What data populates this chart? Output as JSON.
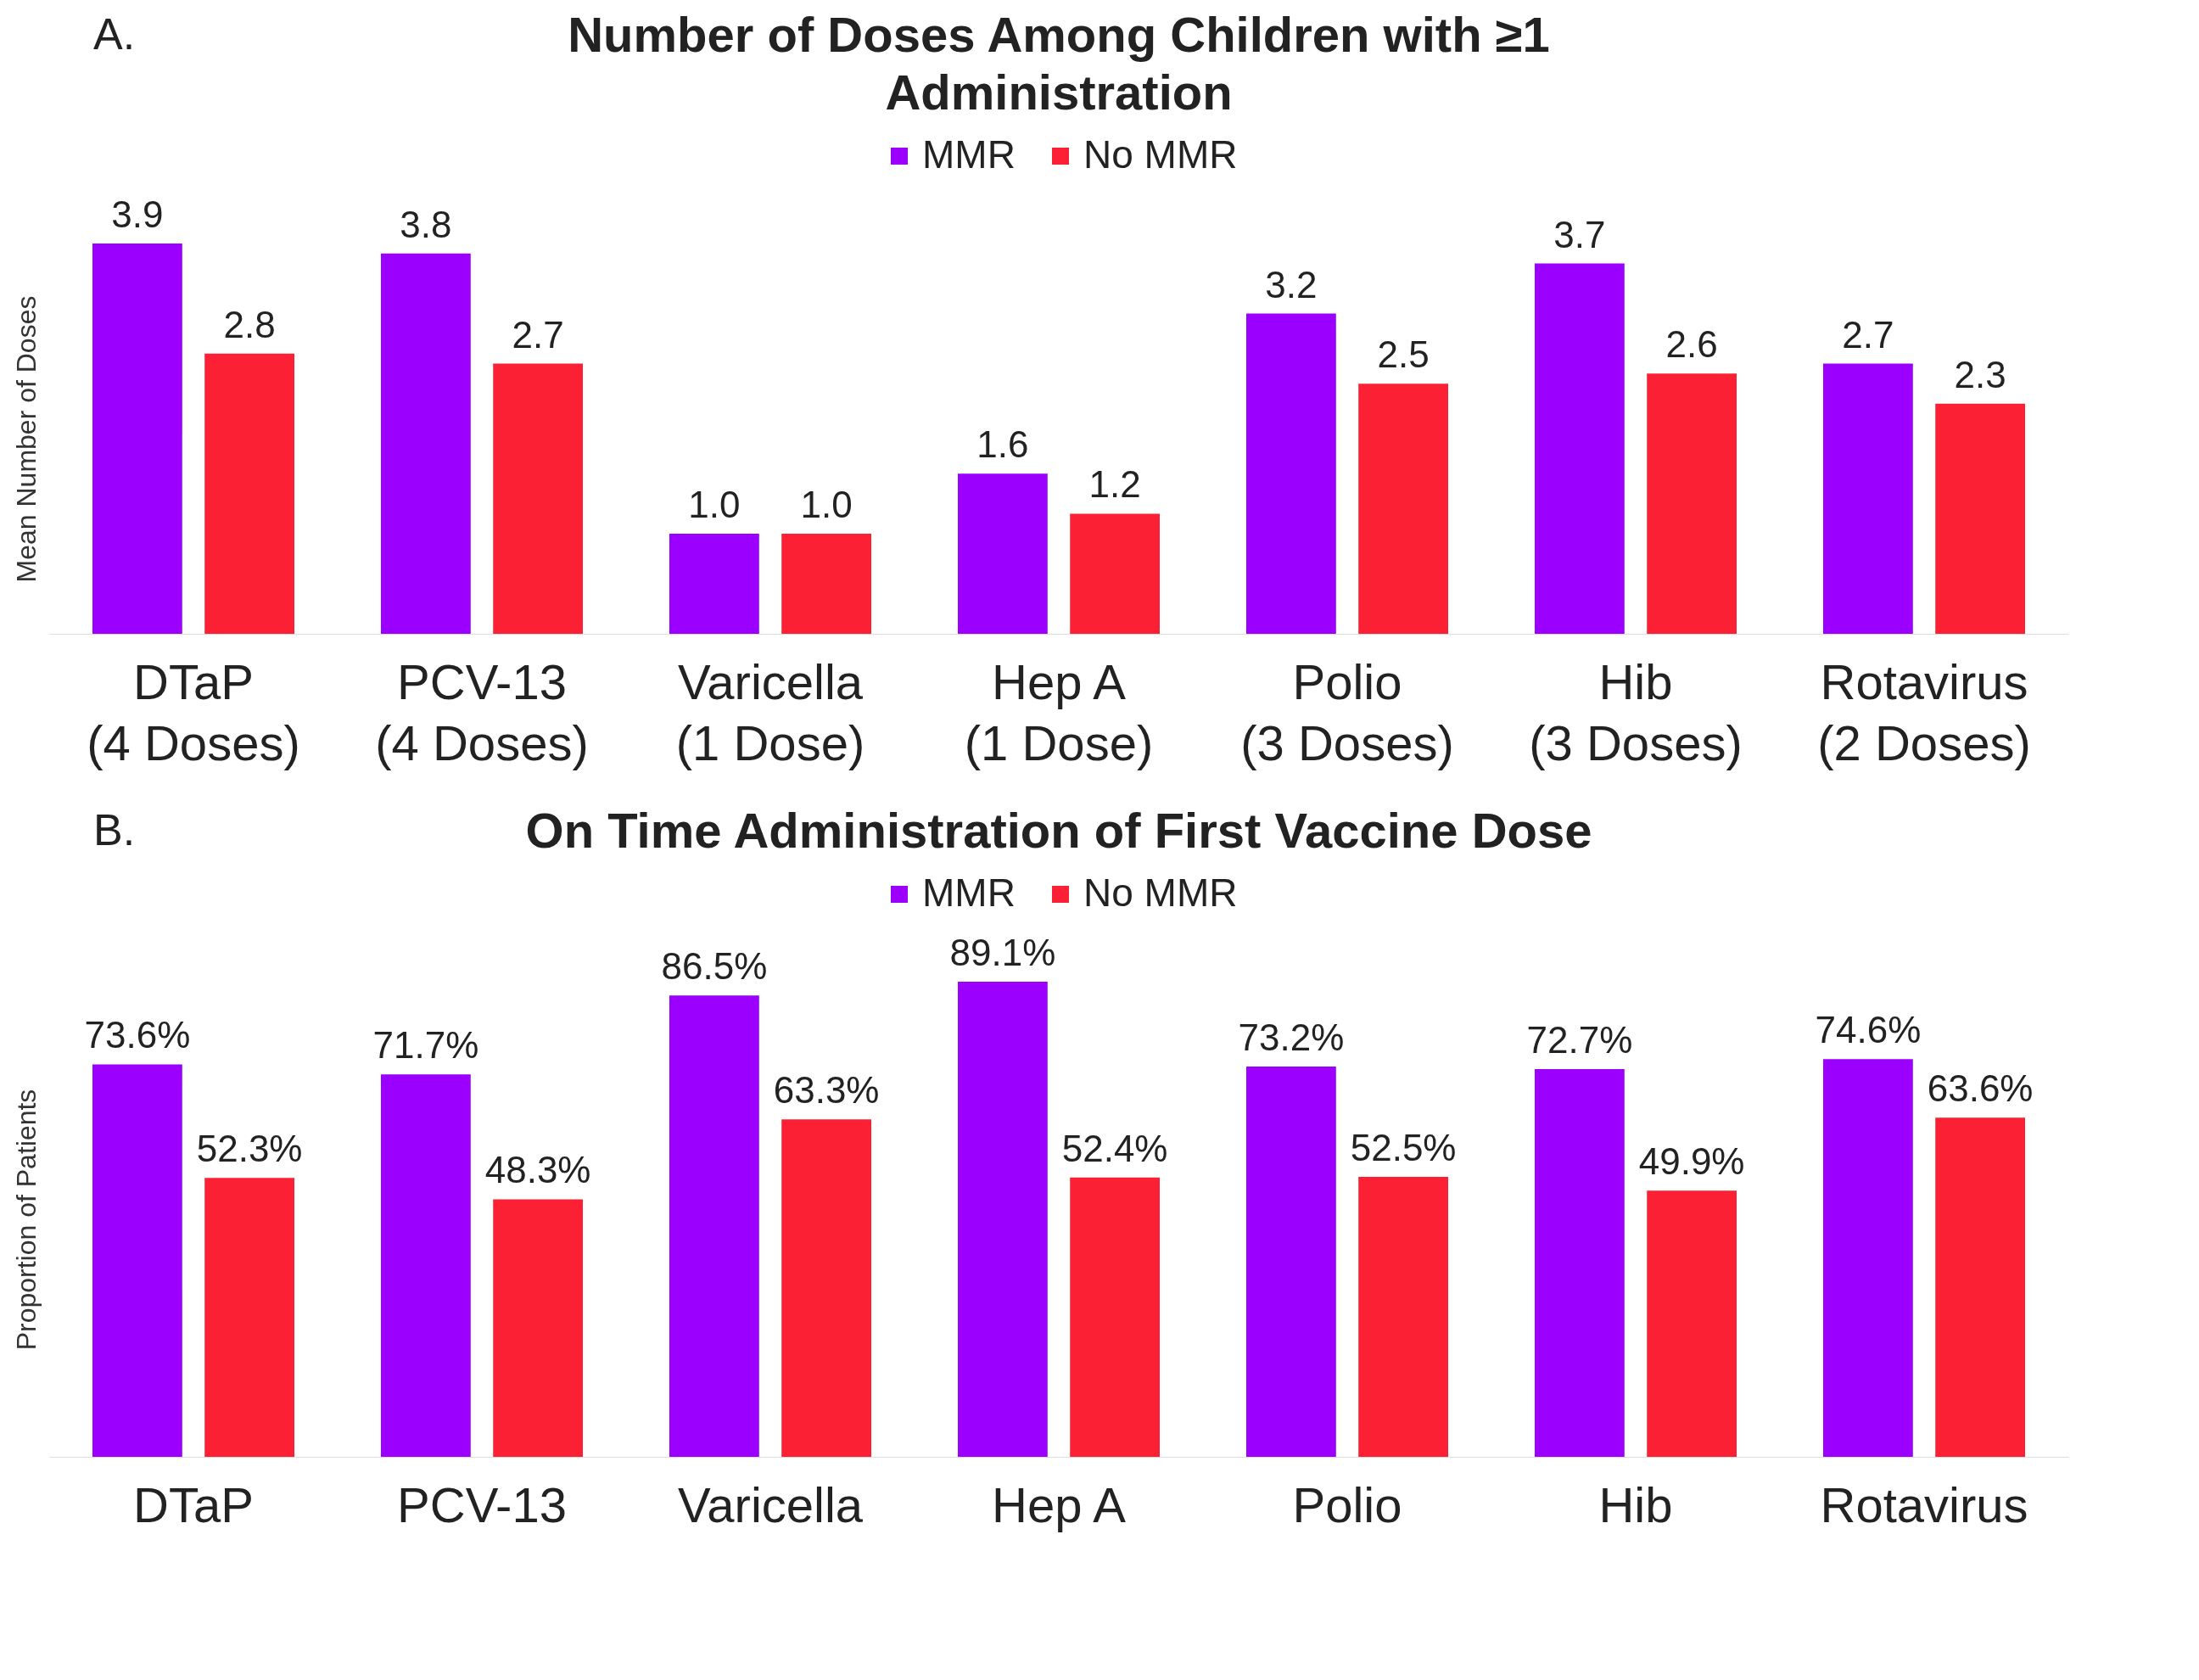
{
  "chart_data": [
    {
      "type": "bar",
      "title": "Number of Doses Among Children with ≥1 Administration",
      "ylabel": "Mean Number of Doses",
      "annotations": [
        "A."
      ],
      "categories": [
        "DTaP\n(4 Doses)",
        "PCV-13\n(4 Doses)",
        "Varicella\n(1 Dose)",
        "Hep A\n(1 Dose)",
        "Polio\n(3 Doses)",
        "Hib\n(3 Doses)",
        "Rotavirus\n(2 Doses)"
      ],
      "series": [
        {
          "name": "MMR",
          "color": "#9b00ff",
          "values": [
            3.9,
            3.8,
            1.0,
            1.6,
            3.2,
            3.7,
            2.7
          ],
          "value_labels": [
            "3.9",
            "3.8",
            "1.0",
            "1.6",
            "3.2",
            "3.7",
            "2.7"
          ]
        },
        {
          "name": "No MMR",
          "color": "#fb2033",
          "values": [
            2.8,
            2.7,
            1.0,
            1.2,
            2.5,
            2.6,
            2.3
          ],
          "value_labels": [
            "2.8",
            "2.7",
            "1.0",
            "1.2",
            "2.5",
            "2.6",
            "2.3"
          ]
        }
      ],
      "tick_labels": "x",
      "legend": "top"
    },
    {
      "type": "bar",
      "title": "On Time Administration of First Vaccine Dose",
      "ylabel": "Proportion of Patients",
      "annotations": [
        "B."
      ],
      "categories": [
        "DTaP",
        "PCV-13",
        "Varicella",
        "Hep A",
        "Polio",
        "Hib",
        "Rotavirus"
      ],
      "series": [
        {
          "name": "MMR",
          "color": "#9b00ff",
          "values": [
            73.6,
            71.7,
            86.5,
            89.1,
            73.2,
            72.7,
            74.6
          ],
          "value_labels": [
            "73.6%",
            "71.7%",
            "86.5%",
            "89.1%",
            "73.2%",
            "72.7%",
            "74.6%"
          ]
        },
        {
          "name": "No MMR",
          "color": "#fb2033",
          "values": [
            52.3,
            48.3,
            63.3,
            52.4,
            52.5,
            49.9,
            63.6
          ],
          "value_labels": [
            "52.3%",
            "48.3%",
            "63.3%",
            "52.4%",
            "52.5%",
            "49.9%",
            "63.6%"
          ]
        }
      ],
      "tick_labels": "x",
      "legend": "top"
    }
  ]
}
